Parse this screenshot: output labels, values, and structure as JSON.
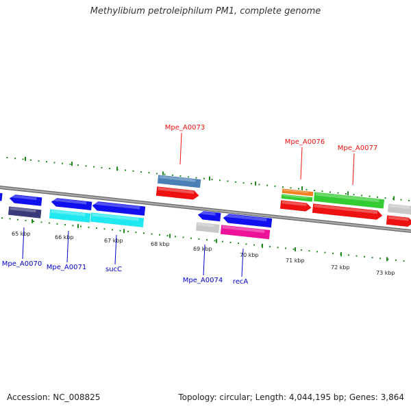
{
  "header": {
    "title": "Methylibium petroleiphilum PM1, complete genome"
  },
  "footer": {
    "accession": "Accession: NC_008825",
    "summary": "Topology: circular; Length: 4,044,195 bp; Genes: 3,864"
  },
  "ruler": {
    "tick_labels": [
      "65 kbp",
      "66 kbp",
      "67 kbp",
      "68 kbp",
      "69 kbp",
      "70 kbp",
      "71 kbp",
      "72 kbp",
      "73 kbp"
    ]
  },
  "strands": {
    "forward_color": "#ee1111",
    "reverse_color": "#0000cc"
  },
  "labels_forward": [
    "Mpe_A0073",
    "Mpe_A0076",
    "Mpe_A0077"
  ],
  "labels_reverse": [
    "Mpe_A0070",
    "Mpe_A0071",
    "sucC",
    "Mpe_A0074",
    "recA"
  ],
  "colors": {
    "backbone": "#888888",
    "dots": "#228822",
    "blue": "#1010ee",
    "cyan": "#20e8f0",
    "red": "#ee1111",
    "green": "#33cc33",
    "steel": "#4a7fb5",
    "gray": "#c8c8c8",
    "magenta": "#ee1199",
    "orange": "#f08020",
    "navy": "#3a3a7a"
  }
}
